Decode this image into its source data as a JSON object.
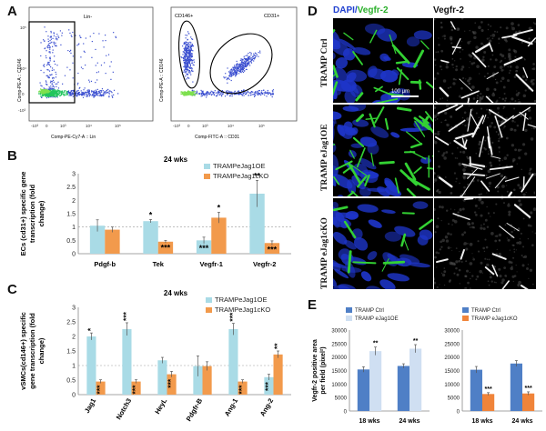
{
  "panels": {
    "A": {
      "letter": "A",
      "plot1": {
        "gate_label": "Lin-",
        "y_axis": "Comp-PE-A :: CD146",
        "x_axis": "Comp-PE-Cy7-A :: Lin"
      },
      "plot2": {
        "gate1_label": "CD146+",
        "gate2_label": "CD31+",
        "y_axis": "Comp-PE-A :: CD146",
        "x_axis": "Comp-FITC-A :: CD31"
      }
    },
    "B": {
      "letter": "B",
      "subtitle": "24 wks"
    },
    "C": {
      "letter": "C",
      "subtitle": "24 wks"
    },
    "D": {
      "letter": "D",
      "col1_title_dapi": "DAPI/",
      "col1_title_vegfr": "Vegfr-2",
      "col2_title": "Vegfr-2",
      "rows": [
        "TRAMP Ctrl",
        "TRAMP eJag1OE",
        "TRAMP eJag1cKO"
      ],
      "scale_bar": "100 μm"
    },
    "E": {
      "letter": "E"
    }
  },
  "colors": {
    "oe": "#a9dbe6",
    "ko": "#f29a4c",
    "ctrl": "#4f7fc6",
    "oe_light": "#cfdff2",
    "ko_e": "#f0843a",
    "dapi": "#1f3fd0",
    "vegfr": "#3cc43c"
  },
  "chart_data": [
    {
      "id": "B",
      "type": "bar",
      "title": "24 wks",
      "ylabel": "ECs (cd31+) specific gene transcription (fold change)",
      "categories": [
        "Pdgf-b",
        "Tek",
        "Vegfr-1",
        "Vegfr-2"
      ],
      "ylim": [
        0,
        3
      ],
      "yticks": [
        "0",
        "0.5",
        "1",
        "1.5",
        "2",
        "2.5",
        "3"
      ],
      "series": [
        {
          "name": "TRAMPeJag1OE",
          "values": [
            1.05,
            1.22,
            0.5,
            2.25
          ],
          "err": [
            0.22,
            0.06,
            0.12,
            0.5
          ],
          "sig": [
            "",
            "*",
            "***",
            "**"
          ]
        },
        {
          "name": "TRAMPeJag1cKO",
          "values": [
            0.9,
            0.45,
            1.35,
            0.4
          ],
          "err": [
            0.1,
            0.05,
            0.2,
            0.08
          ],
          "sig": [
            "",
            "***",
            "*",
            "***"
          ]
        }
      ]
    },
    {
      "id": "C",
      "type": "bar",
      "title": "24 wks",
      "ylabel": "vSMCs(cd146+) specific gene transcription (fold change)",
      "categories": [
        "Jag1",
        "Notch3",
        "HeyL",
        "Pdgfr-B",
        "Ang-1",
        "Ang-2"
      ],
      "ylim": [
        0,
        3
      ],
      "yticks": [
        "0",
        "0.5",
        "1",
        "1.5",
        "2",
        "2.5",
        "3"
      ],
      "series": [
        {
          "name": "TRAMPeJag1OE",
          "values": [
            2.0,
            2.25,
            1.18,
            0.98,
            2.25,
            0.6
          ],
          "err": [
            0.12,
            0.22,
            0.1,
            0.35,
            0.2,
            0.1
          ],
          "sig": [
            "*",
            "***",
            "",
            "",
            "***",
            "***"
          ]
        },
        {
          "name": "TRAMPeJag1cKO",
          "values": [
            0.45,
            0.45,
            0.7,
            0.98,
            0.45,
            1.38
          ],
          "err": [
            0.06,
            0.06,
            0.1,
            0.15,
            0.06,
            0.12
          ],
          "sig": [
            "***",
            "***",
            "***",
            "",
            "***",
            "**"
          ]
        }
      ]
    },
    {
      "id": "E1",
      "type": "bar",
      "title": "",
      "ylabel": "Vegfr-2 positive area per field (pixel²)",
      "categories": [
        "18 wks",
        "24 wks"
      ],
      "ylim": [
        0,
        30000
      ],
      "yticks": [
        "0",
        "5000",
        "10000",
        "15000",
        "20000",
        "25000",
        "30000"
      ],
      "series": [
        {
          "name": "TRAMP Ctrl",
          "values": [
            15400,
            16700
          ],
          "err": [
            1000,
            800
          ],
          "sig": [
            "",
            ""
          ]
        },
        {
          "name": "TRAMP eJag1OE",
          "values": [
            22200,
            23100
          ],
          "err": [
            1500,
            1500
          ],
          "sig": [
            "**",
            "**"
          ]
        }
      ]
    },
    {
      "id": "E2",
      "type": "bar",
      "title": "",
      "ylabel": "",
      "categories": [
        "18 wks",
        "24 wks"
      ],
      "ylim": [
        0,
        30000
      ],
      "yticks": [
        "0",
        "5000",
        "10000",
        "15000",
        "20000",
        "25000",
        "30000"
      ],
      "series": [
        {
          "name": "TRAMP Ctrl",
          "values": [
            15300,
            17600
          ],
          "err": [
            1200,
            1100
          ],
          "sig": [
            "",
            ""
          ]
        },
        {
          "name": "TRAMP eJag1cKO",
          "values": [
            6300,
            6500
          ],
          "err": [
            500,
            600
          ],
          "sig": [
            "***",
            "***"
          ]
        }
      ]
    }
  ]
}
